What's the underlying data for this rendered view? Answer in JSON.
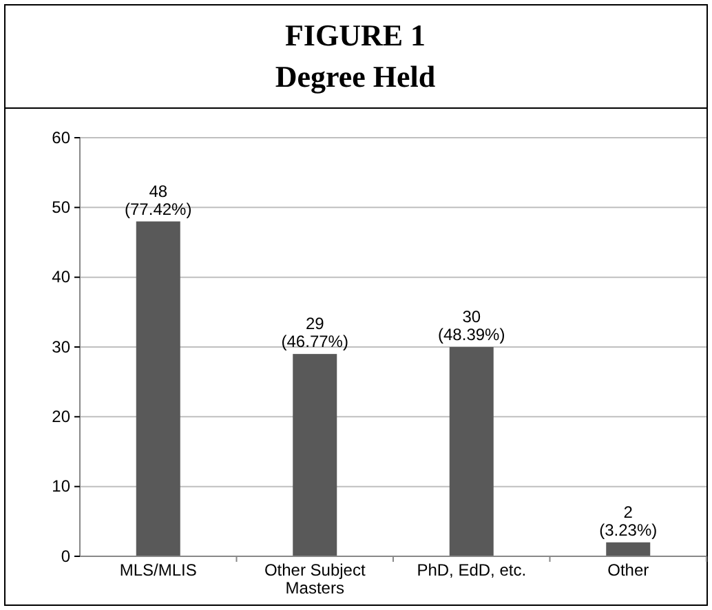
{
  "chart_data": {
    "type": "bar",
    "title": "FIGURE 1",
    "subtitle": "Degree Held",
    "categories": [
      "MLS/MLIS",
      "Other Subject Masters",
      "PhD, EdD, etc.",
      "Other"
    ],
    "values": [
      48,
      29,
      30,
      2
    ],
    "color": "#595959",
    "value_labels": [
      "48\n(77.42%)",
      "29\n(46.77%)",
      "30\n(48.39%)",
      "2\n(3.23%)"
    ],
    "ylim": [
      0,
      60
    ],
    "yticks": [
      0,
      10,
      20,
      30,
      40,
      50,
      60
    ],
    "grid": "y"
  }
}
